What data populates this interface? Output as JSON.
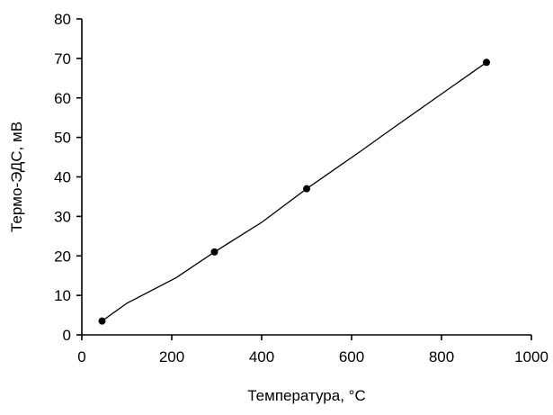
{
  "chart_data": {
    "type": "line",
    "title": "",
    "xlabel": "Температура, °C",
    "ylabel": "Термо-ЭДС, мВ",
    "xlim": [
      0,
      1000
    ],
    "ylim": [
      0,
      80
    ],
    "x_ticks": [
      "0",
      "200",
      "400",
      "600",
      "800",
      "1000"
    ],
    "y_ticks": [
      "0",
      "10",
      "20",
      "30",
      "40",
      "50",
      "60",
      "70",
      "80"
    ],
    "grid": false,
    "legend": "none",
    "series": [
      {
        "curve": {
          "x": [
            45,
            100,
            210,
            295,
            400,
            500,
            620,
            700,
            800,
            900
          ],
          "y": [
            3.5,
            8.0,
            14.5,
            21.0,
            28.5,
            37.0,
            46.5,
            53.0,
            61.0,
            69.0
          ]
        },
        "markers": {
          "x": [
            45,
            295,
            500,
            900
          ],
          "y": [
            3.5,
            21.0,
            37.0,
            69.0
          ]
        }
      }
    ],
    "colors": {
      "line": "#000000",
      "marker": "#000000",
      "background": "#ffffff"
    }
  }
}
